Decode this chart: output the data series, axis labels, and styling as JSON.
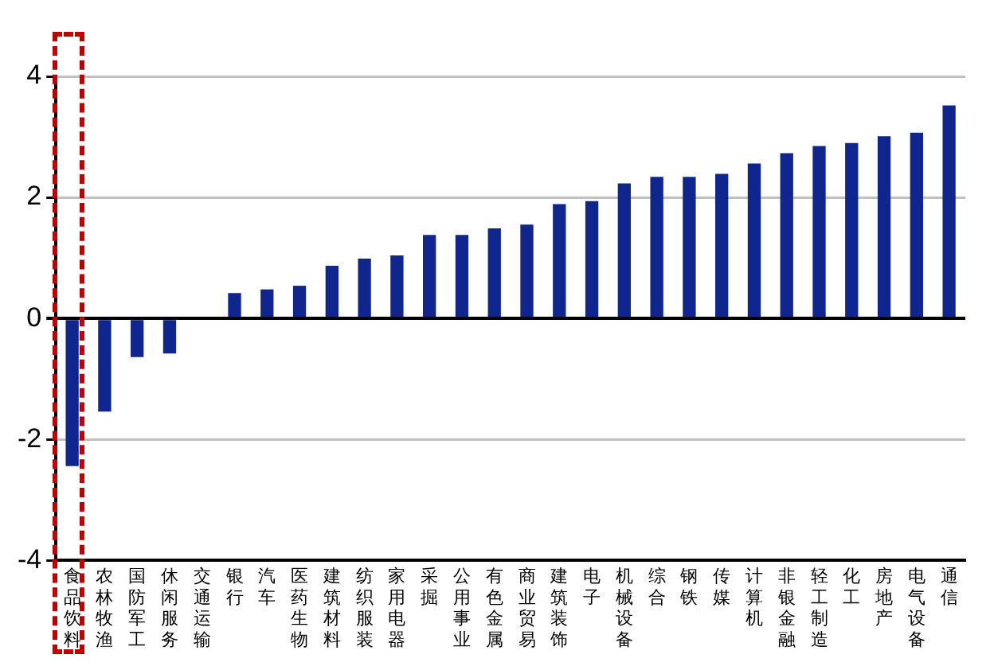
{
  "chart_data": {
    "type": "bar",
    "categories": [
      "食品饮料",
      "农林牧渔",
      "国防军工",
      "休闲服务",
      "交通运输",
      "银行",
      "汽车",
      "医药生物",
      "建筑材料",
      "纺织服装",
      "家用电器",
      "采掘",
      "公用事业",
      "有色金属",
      "商业贸易",
      "建筑装饰",
      "电子",
      "机械设备",
      "综合",
      "钢铁",
      "传媒",
      "计算机",
      "非银金融",
      "轻工制造",
      "化工",
      "房地产",
      "电气设备",
      "通信"
    ],
    "values": [
      -2.44,
      -1.54,
      -0.64,
      -0.58,
      0,
      0.42,
      0.48,
      0.54,
      0.87,
      0.99,
      1.04,
      1.38,
      1.38,
      1.49,
      1.55,
      1.89,
      1.94,
      2.23,
      2.34,
      2.34,
      2.39,
      2.56,
      2.73,
      2.85,
      2.9,
      3.01,
      3.07,
      3.52
    ],
    "color": "#10268f",
    "ylim": [
      -4,
      4
    ],
    "yticks": [
      -4,
      -2,
      0,
      2,
      4
    ],
    "grid": "y",
    "legend": false
  }
}
